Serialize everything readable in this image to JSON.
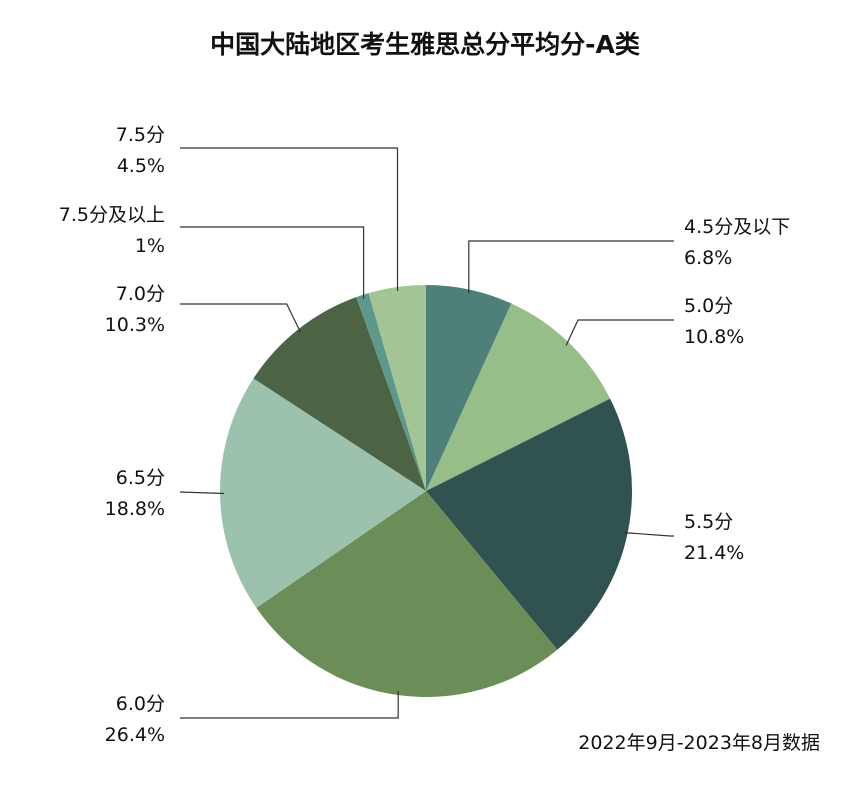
{
  "chart_data": {
    "type": "pie",
    "title": "中国大陆地区考生雅思总分平均分-A类",
    "note": "2022年9月-2023年8月数据",
    "start": "top",
    "direction": "clockwise",
    "slices": [
      {
        "label": "4.5分及以下",
        "value_text": "6.8%",
        "value": 6.8,
        "color": "#4e7f79"
      },
      {
        "label": "5.0分",
        "value_text": "10.8%",
        "value": 10.8,
        "color": "#97bd88"
      },
      {
        "label": "5.5分",
        "value_text": "21.4%",
        "value": 21.4,
        "color": "#305352"
      },
      {
        "label": "6.0分",
        "value_text": "26.4%",
        "value": 26.4,
        "color": "#6b8e58"
      },
      {
        "label": "6.5分",
        "value_text": "18.8%",
        "value": 18.8,
        "color": "#9cc2ad"
      },
      {
        "label": "7.0分",
        "value_text": "10.3%",
        "value": 10.3,
        "color": "#4c6443"
      },
      {
        "label": "7.5分及以上",
        "value_text": "1%",
        "value": 1.0,
        "color": "#5e978b"
      },
      {
        "label": "7.5分",
        "value_text": "4.5%",
        "value": 4.5,
        "color": "#a3c596"
      }
    ]
  }
}
